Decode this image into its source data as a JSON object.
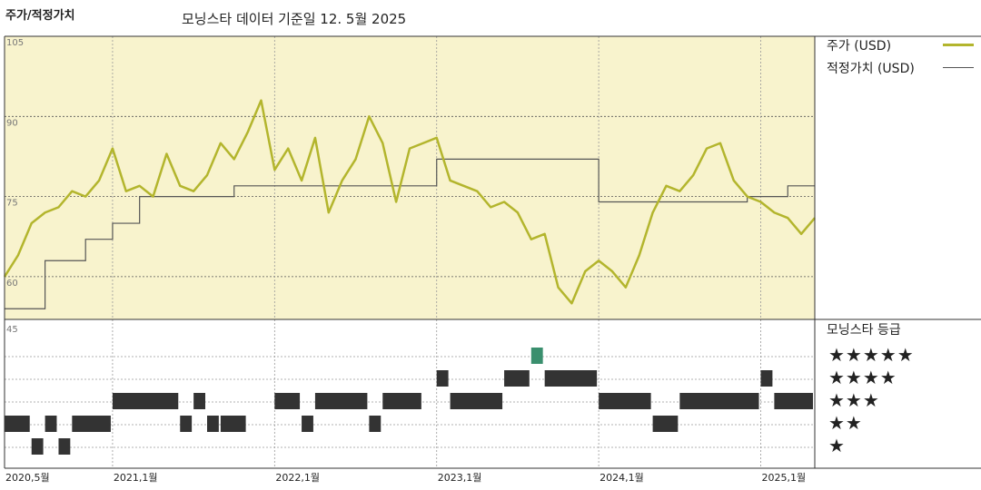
{
  "header": {
    "title": "주가/적정가치",
    "subtitle": "모닝스타 데이터 기준일 12. 5월 2025"
  },
  "legend": {
    "price_label": "주가 (USD)",
    "fair_value_label": "적정가치 (USD)",
    "price_color": "#b3b52d",
    "fair_value_color": "#555555"
  },
  "ratings_panel": {
    "header": "모닝스타 등급",
    "rows": [
      "★★★★★",
      "★★★★",
      "★★★",
      "★★",
      "★"
    ]
  },
  "colors": {
    "plot_bg": "#f8f3cd",
    "grid": "#555555",
    "rating_bar": "#333333",
    "rating_five_star": "#3a8f6e"
  },
  "chart_data": [
    {
      "type": "line",
      "title": "주가/적정가치",
      "y_ticks": [
        "105",
        "90",
        "75",
        "60"
      ],
      "ylim": [
        52,
        105
      ],
      "x_ticks": [
        "2020,5월",
        "2021,1월",
        "2022,1월",
        "2023,1월",
        "2024,1월",
        "2025,1월"
      ],
      "x_tick_dates": [
        "2020-05",
        "2021-01",
        "2022-01",
        "2023-01",
        "2024-01",
        "2025-01"
      ],
      "x_range": [
        "2020-05",
        "2025-05"
      ],
      "series": [
        {
          "name": "주가 (USD)",
          "x": [
            "2020-05",
            "2020-06",
            "2020-07",
            "2020-08",
            "2020-09",
            "2020-10",
            "2020-11",
            "2020-12",
            "2021-01",
            "2021-02",
            "2021-03",
            "2021-04",
            "2021-05",
            "2021-06",
            "2021-07",
            "2021-08",
            "2021-09",
            "2021-10",
            "2021-11",
            "2021-12",
            "2022-01",
            "2022-02",
            "2022-03",
            "2022-04",
            "2022-05",
            "2022-06",
            "2022-07",
            "2022-08",
            "2022-09",
            "2022-10",
            "2022-11",
            "2022-12",
            "2023-01",
            "2023-02",
            "2023-03",
            "2023-04",
            "2023-05",
            "2023-06",
            "2023-07",
            "2023-08",
            "2023-09",
            "2023-10",
            "2023-11",
            "2023-12",
            "2024-01",
            "2024-02",
            "2024-03",
            "2024-04",
            "2024-05",
            "2024-06",
            "2024-07",
            "2024-08",
            "2024-09",
            "2024-10",
            "2024-11",
            "2024-12",
            "2025-01",
            "2025-02",
            "2025-03",
            "2025-04",
            "2025-05"
          ],
          "values": [
            60,
            64,
            70,
            72,
            73,
            76,
            75,
            78,
            84,
            76,
            77,
            75,
            83,
            77,
            76,
            79,
            85,
            82,
            87,
            93,
            80,
            84,
            78,
            86,
            72,
            78,
            82,
            90,
            85,
            74,
            84,
            85,
            86,
            78,
            77,
            76,
            73,
            74,
            72,
            67,
            68,
            58,
            55,
            61,
            63,
            61,
            58,
            64,
            72,
            77,
            76,
            79,
            84,
            85,
            78,
            75,
            74,
            72,
            71,
            68,
            71
          ]
        },
        {
          "name": "적정가치 (USD)",
          "x": [
            "2020-05",
            "2020-07",
            "2020-08",
            "2020-10",
            "2020-11",
            "2021-01",
            "2021-03",
            "2021-06",
            "2021-10",
            "2022-01",
            "2022-06",
            "2023-01",
            "2023-06",
            "2023-09",
            "2023-11",
            "2024-01",
            "2024-03",
            "2024-06",
            "2024-09",
            "2024-12",
            "2025-02",
            "2025-03",
            "2025-05"
          ],
          "values": [
            54,
            54,
            63,
            63,
            67,
            70,
            75,
            75,
            77,
            77,
            77,
            82,
            82,
            82,
            82,
            74,
            74,
            74,
            74,
            75,
            75,
            77,
            77
          ],
          "step": true
        }
      ]
    },
    {
      "type": "table",
      "title": "모닝스타 등급",
      "y_tick": "45",
      "levels": [
        5,
        4,
        3,
        2,
        1
      ],
      "segments": [
        {
          "start": "2020-05",
          "end": "2020-07",
          "stars": 2
        },
        {
          "start": "2020-07",
          "end": "2020-08",
          "stars": 1
        },
        {
          "start": "2020-08",
          "end": "2020-09",
          "stars": 2
        },
        {
          "start": "2020-09",
          "end": "2020-10",
          "stars": 1
        },
        {
          "start": "2020-10",
          "end": "2021-01",
          "stars": 2
        },
        {
          "start": "2021-01",
          "end": "2021-06",
          "stars": 3
        },
        {
          "start": "2021-06",
          "end": "2021-07",
          "stars": 2
        },
        {
          "start": "2021-07",
          "end": "2021-08",
          "stars": 3
        },
        {
          "start": "2021-08",
          "end": "2021-09",
          "stars": 2
        },
        {
          "start": "2021-09",
          "end": "2021-11",
          "stars": 2
        },
        {
          "start": "2022-01",
          "end": "2022-03",
          "stars": 3
        },
        {
          "start": "2022-03",
          "end": "2022-04",
          "stars": 2
        },
        {
          "start": "2022-04",
          "end": "2022-08",
          "stars": 3
        },
        {
          "start": "2022-08",
          "end": "2022-09",
          "stars": 2
        },
        {
          "start": "2022-09",
          "end": "2022-12",
          "stars": 3
        },
        {
          "start": "2023-01",
          "end": "2023-02",
          "stars": 4
        },
        {
          "start": "2023-02",
          "end": "2023-06",
          "stars": 3
        },
        {
          "start": "2023-06",
          "end": "2023-08",
          "stars": 4
        },
        {
          "start": "2023-08",
          "end": "2023-09",
          "stars": 5
        },
        {
          "start": "2023-09",
          "end": "2024-01",
          "stars": 4
        },
        {
          "start": "2024-01",
          "end": "2024-05",
          "stars": 3
        },
        {
          "start": "2024-05",
          "end": "2024-07",
          "stars": 2
        },
        {
          "start": "2024-07",
          "end": "2025-01",
          "stars": 3
        },
        {
          "start": "2025-01",
          "end": "2025-02",
          "stars": 4
        },
        {
          "start": "2025-02",
          "end": "2025-05",
          "stars": 3
        }
      ]
    }
  ]
}
